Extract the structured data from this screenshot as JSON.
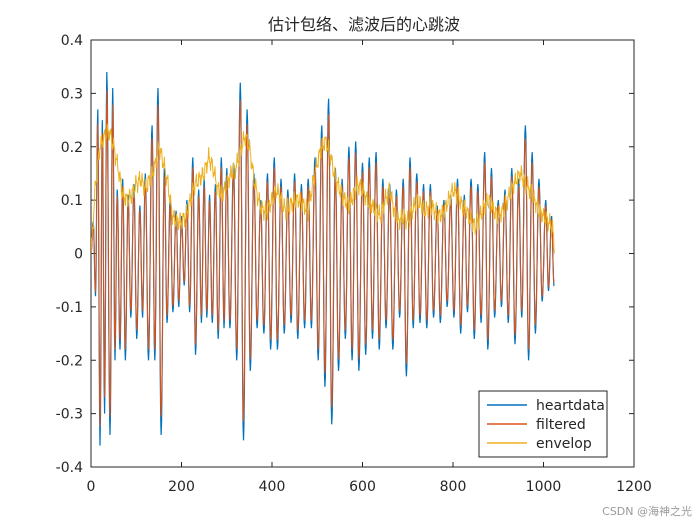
{
  "chart_data": {
    "type": "line",
    "title": "估计包络、滤波后的心跳波",
    "xlabel": "",
    "ylabel": "",
    "xlim": [
      0,
      1200
    ],
    "ylim": [
      -0.4,
      0.4
    ],
    "xticks": [
      "0",
      "200",
      "400",
      "600",
      "800",
      "1000",
      "1200"
    ],
    "yticks": [
      "-0.4",
      "-0.3",
      "-0.2",
      "-0.1",
      "0",
      "0.1",
      "0.2",
      "0.3",
      "0.4"
    ],
    "grid": false,
    "legend_position": "bottom-right",
    "n_points": 1024,
    "series": [
      {
        "name": "heartdata",
        "color": "#0072BD",
        "peaks_x": [
          5,
          15,
          25,
          35,
          48,
          58,
          70,
          82,
          95,
          108,
          120,
          135,
          148,
          162,
          175,
          188,
          200,
          212,
          225,
          238,
          250,
          262,
          275,
          288,
          300,
          315,
          330,
          345,
          360,
          375,
          390,
          405,
          420,
          435,
          450,
          465,
          480,
          495,
          510,
          525,
          540,
          555,
          570,
          585,
          600,
          615,
          630,
          645,
          660,
          675,
          690,
          705,
          720,
          735,
          750,
          765,
          780,
          795,
          810,
          825,
          840,
          855,
          870,
          885,
          900,
          915,
          930,
          945,
          960,
          975,
          990,
          1005,
          1018
        ],
        "peaks_y": [
          0.06,
          0.27,
          0.25,
          0.34,
          0.31,
          0.12,
          0.14,
          0.11,
          0.13,
          0.09,
          0.15,
          0.24,
          0.31,
          0.16,
          0.1,
          0.08,
          0.07,
          0.1,
          0.18,
          0.12,
          0.14,
          0.11,
          0.13,
          0.18,
          0.16,
          0.17,
          0.32,
          0.27,
          0.15,
          0.1,
          0.15,
          0.18,
          0.14,
          0.12,
          0.15,
          0.13,
          0.14,
          0.18,
          0.24,
          0.29,
          0.16,
          0.14,
          0.2,
          0.21,
          0.17,
          0.18,
          0.19,
          0.14,
          0.13,
          0.12,
          0.14,
          0.18,
          0.15,
          0.13,
          0.13,
          0.09,
          0.1,
          0.11,
          0.14,
          0.11,
          0.14,
          0.13,
          0.19,
          0.16,
          0.1,
          0.12,
          0.16,
          0.14,
          0.24,
          0.19,
          0.14,
          0.1,
          0.07
        ],
        "troughs_x": [
          10,
          20,
          30,
          42,
          53,
          64,
          76,
          88,
          101,
          114,
          127,
          141,
          155,
          168,
          181,
          194,
          206,
          218,
          231,
          244,
          256,
          268,
          281,
          294,
          307,
          322,
          337,
          352,
          367,
          382,
          397,
          412,
          427,
          442,
          457,
          472,
          487,
          502,
          517,
          532,
          547,
          562,
          577,
          592,
          607,
          622,
          637,
          652,
          667,
          682,
          697,
          712,
          727,
          742,
          757,
          772,
          787,
          802,
          817,
          832,
          847,
          862,
          877,
          892,
          907,
          922,
          937,
          952,
          967,
          982,
          997,
          1011,
          1023
        ],
        "troughs_y": [
          -0.08,
          -0.36,
          -0.3,
          -0.34,
          -0.2,
          -0.18,
          -0.2,
          -0.12,
          -0.16,
          -0.12,
          -0.2,
          -0.2,
          -0.34,
          -0.13,
          -0.11,
          -0.1,
          -0.06,
          -0.11,
          -0.19,
          -0.13,
          -0.12,
          -0.13,
          -0.16,
          -0.14,
          -0.14,
          -0.2,
          -0.35,
          -0.22,
          -0.14,
          -0.15,
          -0.18,
          -0.18,
          -0.15,
          -0.13,
          -0.16,
          -0.14,
          -0.14,
          -0.2,
          -0.25,
          -0.32,
          -0.22,
          -0.16,
          -0.2,
          -0.22,
          -0.19,
          -0.16,
          -0.18,
          -0.14,
          -0.18,
          -0.12,
          -0.23,
          -0.14,
          -0.13,
          -0.14,
          -0.12,
          -0.13,
          -0.1,
          -0.12,
          -0.15,
          -0.11,
          -0.16,
          -0.13,
          -0.18,
          -0.12,
          -0.1,
          -0.13,
          -0.17,
          -0.12,
          -0.2,
          -0.15,
          -0.09,
          -0.07,
          -0.06
        ]
      },
      {
        "name": "filtered",
        "color": "#D95319",
        "scale_of_heartdata": 0.9
      },
      {
        "name": "envelop",
        "color": "#EDB120",
        "x": [
          0,
          10,
          20,
          30,
          40,
          50,
          60,
          70,
          80,
          90,
          100,
          110,
          120,
          130,
          140,
          150,
          160,
          170,
          180,
          190,
          200,
          210,
          220,
          230,
          240,
          250,
          260,
          270,
          280,
          290,
          300,
          310,
          320,
          330,
          340,
          350,
          360,
          370,
          380,
          390,
          400,
          410,
          420,
          430,
          440,
          450,
          460,
          470,
          480,
          490,
          500,
          510,
          520,
          530,
          540,
          550,
          560,
          570,
          580,
          590,
          600,
          610,
          620,
          630,
          640,
          650,
          660,
          670,
          680,
          690,
          700,
          710,
          720,
          730,
          740,
          750,
          760,
          770,
          780,
          790,
          800,
          810,
          820,
          830,
          840,
          850,
          860,
          870,
          880,
          890,
          900,
          910,
          920,
          930,
          940,
          950,
          960,
          970,
          980,
          990,
          1000,
          1010,
          1020,
          1024
        ],
        "y": [
          0.0,
          0.13,
          0.2,
          0.22,
          0.23,
          0.2,
          0.16,
          0.11,
          0.1,
          0.11,
          0.13,
          0.14,
          0.12,
          0.14,
          0.16,
          0.2,
          0.17,
          0.13,
          0.07,
          0.06,
          0.06,
          0.07,
          0.1,
          0.13,
          0.14,
          0.15,
          0.18,
          0.16,
          0.12,
          0.11,
          0.13,
          0.15,
          0.16,
          0.19,
          0.22,
          0.2,
          0.14,
          0.1,
          0.08,
          0.08,
          0.1,
          0.12,
          0.1,
          0.08,
          0.09,
          0.1,
          0.1,
          0.09,
          0.08,
          0.13,
          0.17,
          0.2,
          0.21,
          0.18,
          0.14,
          0.12,
          0.1,
          0.09,
          0.11,
          0.13,
          0.12,
          0.1,
          0.09,
          0.08,
          0.07,
          0.1,
          0.12,
          0.08,
          0.06,
          0.07,
          0.06,
          0.08,
          0.1,
          0.09,
          0.08,
          0.09,
          0.08,
          0.07,
          0.08,
          0.1,
          0.12,
          0.11,
          0.09,
          0.08,
          0.06,
          0.05,
          0.07,
          0.09,
          0.1,
          0.08,
          0.07,
          0.08,
          0.1,
          0.12,
          0.14,
          0.15,
          0.13,
          0.12,
          0.1,
          0.08,
          0.07,
          0.06,
          0.05,
          0.0
        ]
      }
    ]
  },
  "watermark": "CSDN @海神之光"
}
